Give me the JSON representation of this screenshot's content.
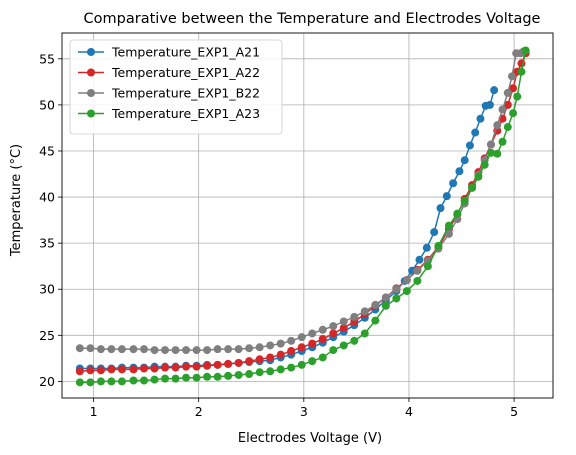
{
  "chart_data": {
    "type": "line",
    "title": "Comparative between the Temperature and Electrodes Voltage",
    "xlabel": "Electrodes Voltage (V)",
    "ylabel": "Temperature (°C)",
    "xlim": [
      0.7,
      5.37
    ],
    "ylim": [
      18.2,
      57.8
    ],
    "xticks": [
      1,
      2,
      3,
      4,
      5
    ],
    "yticks": [
      20,
      25,
      30,
      35,
      40,
      45,
      50,
      55
    ],
    "grid": true,
    "legend_position": "top-left",
    "series": [
      {
        "name": "Temperature_EXP1_A21",
        "color": "#1f77b4",
        "x": [
          0.87,
          0.97,
          1.07,
          1.17,
          1.27,
          1.38,
          1.48,
          1.58,
          1.68,
          1.78,
          1.88,
          1.98,
          2.08,
          2.18,
          2.28,
          2.38,
          2.48,
          2.58,
          2.68,
          2.78,
          2.88,
          2.98,
          3.08,
          3.18,
          3.28,
          3.38,
          3.48,
          3.58,
          3.68,
          3.78,
          3.88,
          3.96,
          4.03,
          4.1,
          4.17,
          4.24,
          4.3,
          4.36,
          4.42,
          4.48,
          4.53,
          4.58,
          4.63,
          4.68,
          4.73,
          4.77,
          4.81
        ],
        "y": [
          21.4,
          21.4,
          21.4,
          21.4,
          21.5,
          21.5,
          21.5,
          21.6,
          21.6,
          21.6,
          21.7,
          21.7,
          21.8,
          21.8,
          21.9,
          22.0,
          22.1,
          22.2,
          22.3,
          22.6,
          22.9,
          23.3,
          23.7,
          24.2,
          24.8,
          25.4,
          26.1,
          26.9,
          27.8,
          28.8,
          29.8,
          30.9,
          32.0,
          33.2,
          34.5,
          36.2,
          38.8,
          40.1,
          41.5,
          42.8,
          44.0,
          45.6,
          47.0,
          48.5,
          49.9,
          50.0,
          51.6
        ]
      },
      {
        "name": "Temperature_EXP1_A22",
        "color": "#d62728",
        "x": [
          0.87,
          0.97,
          1.07,
          1.17,
          1.27,
          1.38,
          1.48,
          1.58,
          1.68,
          1.78,
          1.88,
          1.98,
          2.08,
          2.18,
          2.28,
          2.38,
          2.48,
          2.58,
          2.68,
          2.78,
          2.88,
          2.98,
          3.08,
          3.18,
          3.28,
          3.38,
          3.48,
          3.58,
          3.68,
          3.78,
          3.88,
          3.98,
          4.08,
          4.18,
          4.28,
          4.38,
          4.46,
          4.53,
          4.6,
          4.66,
          4.72,
          4.78,
          4.84,
          4.89,
          4.94,
          4.99,
          5.03,
          5.07,
          5.11
        ],
        "y": [
          21.1,
          21.2,
          21.2,
          21.3,
          21.3,
          21.3,
          21.4,
          21.4,
          21.5,
          21.5,
          21.6,
          21.6,
          21.7,
          21.8,
          21.9,
          22.0,
          22.2,
          22.4,
          22.6,
          22.9,
          23.3,
          23.7,
          24.1,
          24.6,
          25.2,
          25.8,
          26.5,
          27.3,
          28.2,
          29.1,
          30.1,
          31.0,
          32.1,
          33.2,
          34.6,
          36.5,
          38.1,
          39.8,
          41.3,
          42.7,
          44.2,
          45.7,
          47.2,
          48.5,
          50.0,
          51.8,
          53.6,
          54.5,
          55.6
        ]
      },
      {
        "name": "Temperature_EXP1_B22",
        "color": "#7f7f7f",
        "x": [
          0.87,
          0.97,
          1.07,
          1.17,
          1.27,
          1.38,
          1.48,
          1.58,
          1.68,
          1.78,
          1.88,
          1.98,
          2.08,
          2.18,
          2.28,
          2.38,
          2.48,
          2.58,
          2.68,
          2.78,
          2.88,
          2.98,
          3.08,
          3.18,
          3.28,
          3.38,
          3.48,
          3.58,
          3.68,
          3.78,
          3.88,
          3.98,
          4.08,
          4.18,
          4.28,
          4.38,
          4.46,
          4.53,
          4.6,
          4.66,
          4.72,
          4.78,
          4.84,
          4.89,
          4.94,
          4.98,
          5.02,
          5.06,
          5.09
        ],
        "y": [
          23.6,
          23.6,
          23.5,
          23.5,
          23.5,
          23.5,
          23.5,
          23.4,
          23.4,
          23.4,
          23.4,
          23.4,
          23.4,
          23.5,
          23.5,
          23.5,
          23.6,
          23.7,
          23.9,
          24.1,
          24.4,
          24.8,
          25.2,
          25.6,
          26.0,
          26.5,
          27.0,
          27.6,
          28.3,
          29.1,
          30.0,
          31.0,
          32.0,
          33.1,
          34.4,
          36.0,
          37.6,
          39.3,
          41.0,
          42.4,
          44.0,
          45.7,
          47.8,
          49.5,
          51.3,
          53.1,
          55.6,
          55.6,
          55.8
        ]
      },
      {
        "name": "Temperature_EXP1_A23",
        "color": "#2ca02c",
        "x": [
          0.87,
          0.97,
          1.07,
          1.17,
          1.27,
          1.38,
          1.48,
          1.58,
          1.68,
          1.78,
          1.88,
          1.98,
          2.08,
          2.18,
          2.28,
          2.38,
          2.48,
          2.58,
          2.68,
          2.78,
          2.88,
          2.98,
          3.08,
          3.18,
          3.28,
          3.38,
          3.48,
          3.58,
          3.68,
          3.78,
          3.88,
          3.98,
          4.08,
          4.18,
          4.28,
          4.38,
          4.46,
          4.53,
          4.6,
          4.66,
          4.72,
          4.78,
          4.84,
          4.89,
          4.94,
          4.99,
          5.03,
          5.07,
          5.11
        ],
        "y": [
          19.9,
          19.9,
          20.0,
          20.0,
          20.0,
          20.1,
          20.1,
          20.2,
          20.3,
          20.3,
          20.4,
          20.4,
          20.5,
          20.5,
          20.6,
          20.7,
          20.8,
          21.0,
          21.1,
          21.3,
          21.5,
          21.8,
          22.2,
          22.6,
          23.4,
          23.9,
          24.4,
          25.2,
          26.6,
          28.2,
          29.0,
          29.8,
          30.9,
          32.5,
          34.7,
          36.9,
          38.2,
          39.6,
          41.0,
          42.2,
          43.5,
          44.8,
          44.7,
          46.0,
          47.6,
          49.1,
          50.9,
          53.6,
          55.9
        ]
      }
    ]
  }
}
